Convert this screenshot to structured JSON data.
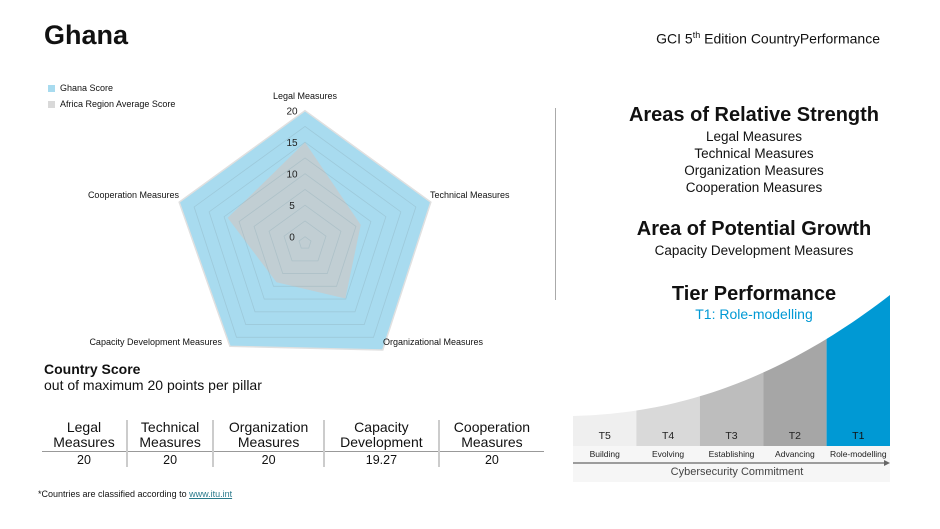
{
  "header": {
    "country": "Ghana",
    "edition_prefix": "GCI 5",
    "edition_sup": "th",
    "edition_suffix": " Edition CountryPerformance"
  },
  "chart_data": {
    "type": "radar",
    "axes": [
      "Legal Measures",
      "Technical Measures",
      "Organizational Measures",
      "Capacity Development Measures",
      "Cooperation Measures"
    ],
    "ticks": [
      0,
      5,
      10,
      15,
      20
    ],
    "range": [
      0,
      20
    ],
    "legend_position": "top-left",
    "series": [
      {
        "name": "Ghana Score",
        "color": "#a8dbef",
        "values": [
          20,
          20,
          20,
          19.27,
          20
        ]
      },
      {
        "name": "Africa Region Average Score",
        "color": "#c9c9c9",
        "values": [
          15,
          8.3,
          9.9,
          6.7,
          11.9
        ]
      }
    ]
  },
  "strength": {
    "title": "Areas of Relative Strength",
    "items": [
      "Legal Measures",
      "Technical Measures",
      "Organization Measures",
      "Cooperation Measures"
    ]
  },
  "growth": {
    "title": "Area of Potential Growth",
    "items": [
      "Capacity Development Measures"
    ]
  },
  "tier": {
    "title": "Tier Performance",
    "current": "T1: Role-modelling",
    "accent": "#0099d4",
    "tiers": [
      {
        "code": "T5",
        "name": "Building",
        "color": "#efefef"
      },
      {
        "code": "T4",
        "name": "Evolving",
        "color": "#d9d9d9"
      },
      {
        "code": "T3",
        "name": "Establishing",
        "color": "#bdbdbd"
      },
      {
        "code": "T2",
        "name": "Advancing",
        "color": "#a6a6a6"
      },
      {
        "code": "T1",
        "name": "Role-modelling",
        "color": "#0099d4"
      }
    ],
    "axis_label": "Cybersecurity Commitment"
  },
  "score": {
    "title": "Country Score",
    "subtitle": "out of maximum 20 points per pillar",
    "headers": [
      [
        "Legal",
        "Measures"
      ],
      [
        "Technical",
        "Measures"
      ],
      [
        "Organization",
        "Measures"
      ],
      [
        "Capacity",
        "Development"
      ],
      [
        "Cooperation",
        "Measures"
      ]
    ],
    "values": [
      "20",
      "20",
      "20",
      "19.27",
      "20"
    ]
  },
  "footnote": {
    "text": "*Countries are classified according to ",
    "link": "www.itu.int"
  }
}
